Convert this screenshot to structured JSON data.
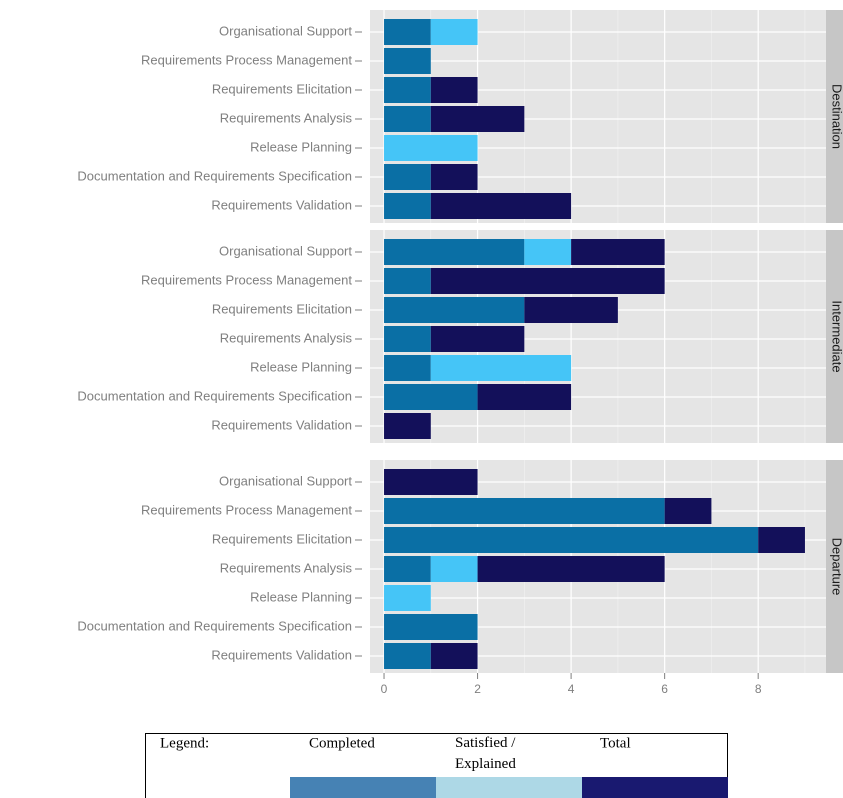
{
  "chart_data": {
    "type": "bar",
    "orientation": "horizontal",
    "stacked": true,
    "facets": [
      "Destination",
      "Intermediate",
      "Departure"
    ],
    "categories": [
      "Organisational Support",
      "Requirements Process Management",
      "Requirements Elicitation",
      "Requirements Analysis",
      "Release Planning",
      "Documentation and Requirements Specification",
      "Requirements Validation"
    ],
    "series": [
      {
        "name": "Completed",
        "color": "#0a6fa5",
        "legend_color": "#4682b4",
        "values": [
          [
            1,
            1,
            1,
            1,
            0,
            1,
            1
          ],
          [
            3,
            1,
            3,
            1,
            1,
            2,
            0
          ],
          [
            0,
            6,
            8,
            1,
            0,
            2,
            1
          ]
        ]
      },
      {
        "name": "Satisfied / Explained",
        "color": "#45c5f7",
        "legend_color": "#add8e6",
        "values": [
          [
            1,
            0,
            0,
            0,
            2,
            0,
            0
          ],
          [
            1,
            0,
            0,
            0,
            3,
            0,
            0
          ],
          [
            0,
            0,
            0,
            1,
            1,
            0,
            0
          ]
        ]
      },
      {
        "name": "Total",
        "color": "#13105a",
        "legend_color": "#191970",
        "values": [
          [
            0,
            0,
            1,
            2,
            0,
            1,
            3
          ],
          [
            2,
            5,
            2,
            2,
            0,
            2,
            1
          ],
          [
            2,
            1,
            1,
            4,
            0,
            0,
            1
          ]
        ]
      }
    ],
    "xlim": [
      -0.3,
      9.45
    ],
    "xticks": [
      0,
      2,
      4,
      6,
      8
    ],
    "xminor_ticks": [
      1,
      3,
      5,
      7,
      9
    ],
    "grid": true,
    "legend_title": "Legend:"
  }
}
